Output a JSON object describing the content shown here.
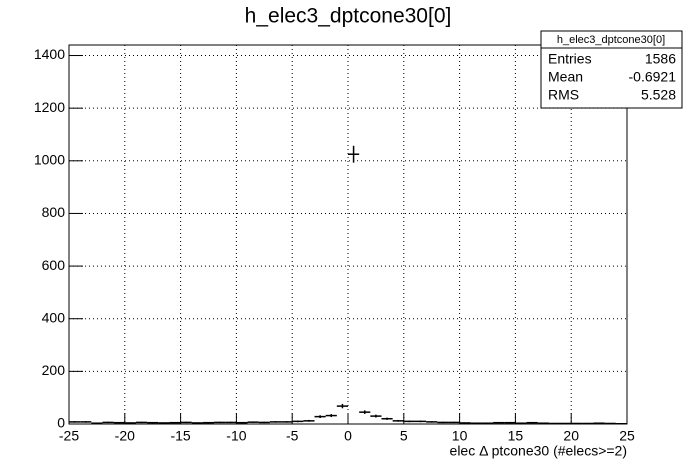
{
  "chart_data": {
    "type": "histogram",
    "title": "h_elec3_dptcone30[0]",
    "xlabel": "elec Δ ptcone30 (#elecs>=2)",
    "bins": [
      -25,
      -24,
      -23,
      -22,
      -21,
      -20,
      -19,
      -18,
      -17,
      -16,
      -15,
      -14,
      -13,
      -12,
      -11,
      -10,
      -9,
      -8,
      -7,
      -6,
      -5,
      -4,
      -3,
      -2,
      -1,
      0,
      1,
      2,
      3,
      4,
      5,
      6,
      7,
      8,
      9,
      10,
      11,
      12,
      13,
      14,
      15,
      16,
      17,
      18,
      19,
      20,
      21,
      22,
      23,
      24,
      25
    ],
    "values": [
      8,
      8,
      3,
      6,
      5,
      4,
      6,
      5,
      4,
      5,
      6,
      4,
      5,
      6,
      6,
      5,
      7,
      6,
      8,
      8,
      10,
      12,
      28,
      32,
      68,
      1025,
      45,
      30,
      20,
      12,
      10,
      10,
      8,
      6,
      6,
      4,
      3,
      3,
      5,
      5,
      3,
      5,
      3,
      2,
      2,
      2,
      2,
      3,
      2,
      1
    ],
    "color": "#000000",
    "xlim": [
      -25,
      25
    ],
    "xticks": [
      -25,
      -20,
      -15,
      -10,
      -5,
      0,
      5,
      10,
      15,
      20,
      25
    ],
    "ylim": [
      0,
      1440
    ],
    "yticks": [
      0,
      200,
      400,
      600,
      800,
      1000,
      1200,
      1400
    ],
    "grid": true,
    "stats": {
      "title": "h_elec3_dptcone30[0]",
      "labels": [
        "Entries",
        "Mean",
        "RMS"
      ],
      "values": [
        1586,
        -0.6921,
        5.528
      ]
    }
  }
}
